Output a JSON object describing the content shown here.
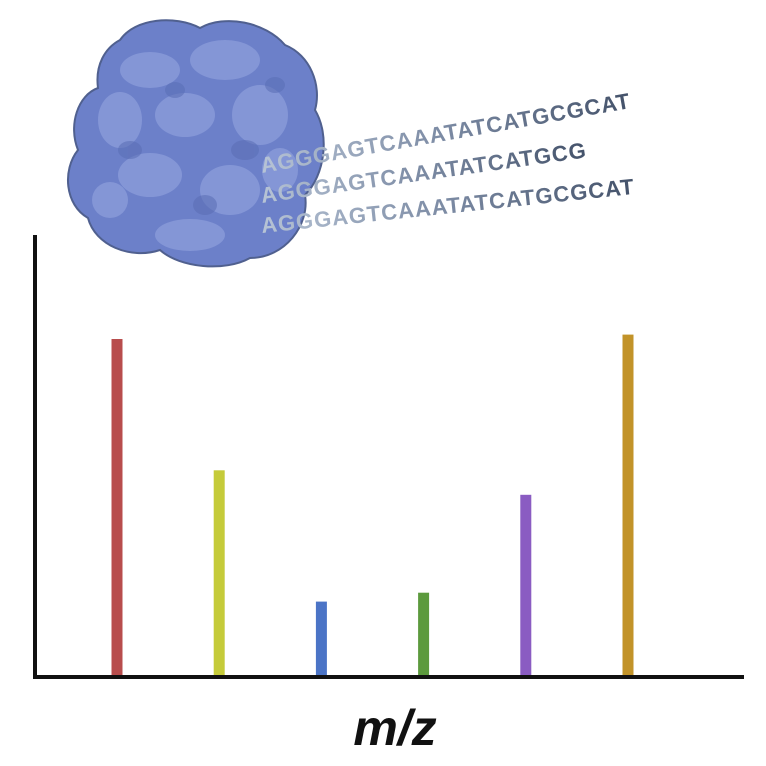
{
  "chart_data": {
    "type": "bar",
    "title": "",
    "xlabel": "m/z",
    "ylabel": "",
    "ylim": [
      0,
      100
    ],
    "grid": false,
    "legend": "none",
    "categories": [
      "",
      "",
      "",
      "",
      "",
      ""
    ],
    "values": [
      75.5,
      46,
      16.5,
      18.5,
      40.5,
      76.5
    ],
    "colors": [
      "#b84d4d",
      "#c5cb3a",
      "#4b74c6",
      "#5c9a3d",
      "#8a5cc2",
      "#c29329"
    ]
  },
  "illustration": {
    "protein_color": "#6c80c9",
    "dna_strands": [
      "AGGGAGTCAAATATCATGCGCAT",
      "AGGGAGTCAAATATCATGCG",
      "AGGGAGTCAAATATCATGCGCAT"
    ]
  },
  "colors": {
    "axis": "#111111",
    "background": "#ffffff"
  }
}
